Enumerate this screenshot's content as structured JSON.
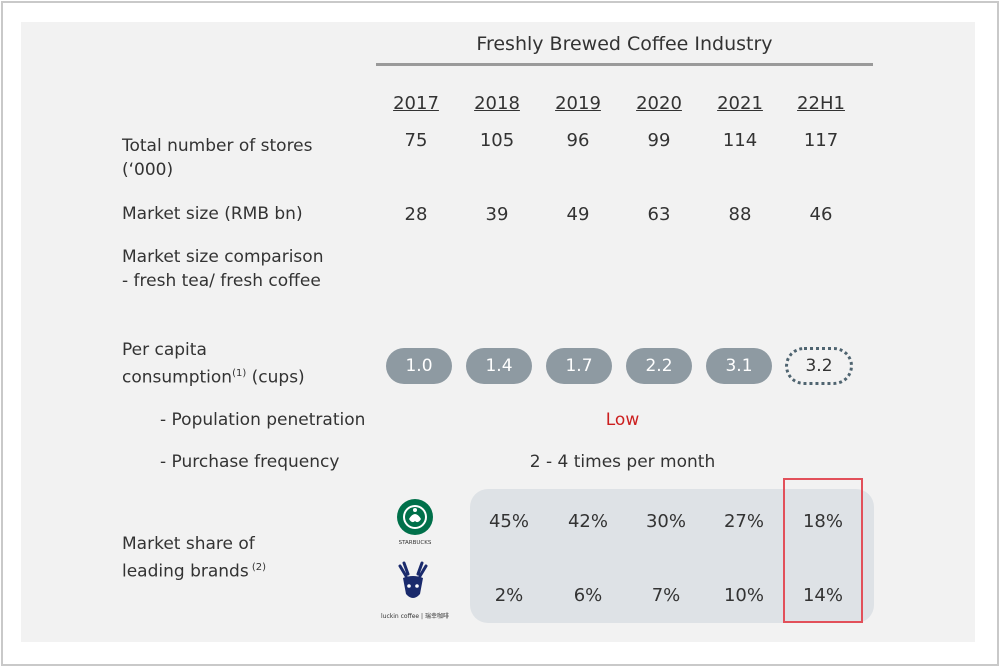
{
  "header": {
    "title": "Freshly Brewed Coffee Industry"
  },
  "years": [
    "2017",
    "2018",
    "2019",
    "2020",
    "2021",
    "22H1"
  ],
  "rows": {
    "stores": {
      "label_line1": "Total number of stores",
      "label_line2": "(‘000)",
      "values": [
        "75",
        "105",
        "96",
        "99",
        "114",
        "117"
      ]
    },
    "market_size": {
      "label": "Market size (RMB bn)",
      "values": [
        "28",
        "39",
        "49",
        "63",
        "88",
        "46"
      ]
    },
    "comparison": {
      "label_line1": "Market size comparison",
      "label_line2": "- fresh tea/ fresh coffee"
    },
    "per_capita": {
      "label_line1": "Per capita",
      "label_line2_main": "consumption",
      "label_line2_sup": "(1)",
      "label_line2_tail": " (cups)",
      "values": [
        "1.0",
        "1.4",
        "1.7",
        "2.2",
        "3.1",
        "3.2"
      ]
    },
    "penetration": {
      "label": "- Population penetration",
      "value": "Low"
    },
    "frequency": {
      "label": "- Purchase frequency",
      "value": "2 - 4 times per month"
    },
    "market_share": {
      "label_line1": "Market share of",
      "label_line2_main": "leading brands",
      "label_line2_sup": " (2)",
      "brands": [
        {
          "name": "Starbucks",
          "logo_text": "STARBUCKS",
          "icon": "starbucks-logo",
          "values": [
            "45%",
            "42%",
            "30%",
            "27%",
            "18%"
          ]
        },
        {
          "name": "Luckin",
          "logo_text": "luckin coffee | 瑞幸咖啡",
          "icon": "luckin-logo",
          "values": [
            "2%",
            "6%",
            "7%",
            "10%",
            "14%"
          ]
        }
      ]
    }
  },
  "colors": {
    "pill_fill": "#8e9aa2",
    "dotted_outline": "#4f6470",
    "low_red": "#cc1f1f",
    "highlight_border": "#e2505a",
    "share_bg": "#dee2e6",
    "starbucks_green": "#00704a",
    "luckin_blue": "#1a2a6c"
  }
}
